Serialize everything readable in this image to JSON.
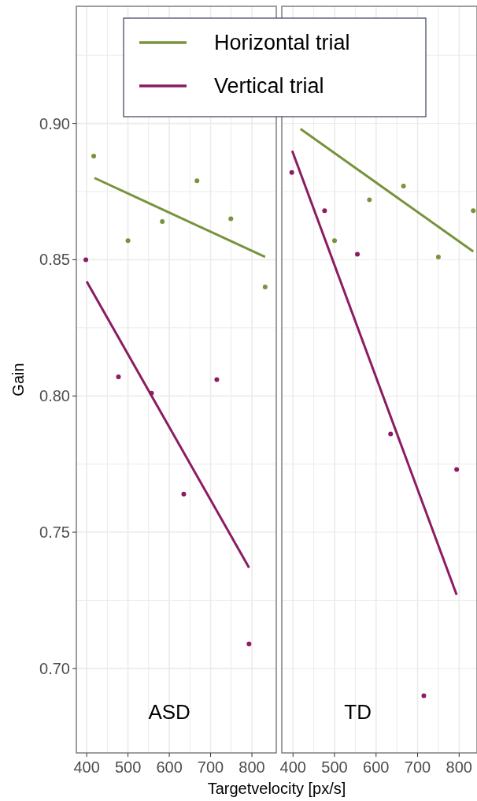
{
  "chart_data": [
    {
      "type": "scatter",
      "ylabel": "Gain",
      "xlabel": "Targetvelocity [px/s]",
      "annotations": [
        "ASD"
      ],
      "legend": "top",
      "grid": true,
      "marker": "circle",
      "xlim": [
        375,
        859
      ],
      "ylim": [
        0.669,
        0.943
      ],
      "xticks": [
        400,
        {
          "value": 450,
          "label": null
        },
        500,
        {
          "value": 550,
          "label": null
        },
        600,
        {
          "value": 650,
          "label": null
        },
        700,
        {
          "value": 750,
          "label": null
        },
        800
      ],
      "yticks": [
        {
          "value": 0.7,
          "label": "0.70"
        },
        {
          "value": 0.725,
          "label": null
        },
        {
          "value": 0.75,
          "label": "0.75"
        },
        {
          "value": 0.775,
          "label": null
        },
        {
          "value": 0.8,
          "label": "0.80"
        },
        {
          "value": 0.825,
          "label": null
        },
        {
          "value": 0.85,
          "label": "0.85"
        },
        {
          "value": 0.875,
          "label": null
        },
        {
          "value": 0.9,
          "label": "0.90"
        },
        {
          "value": 0.925,
          "label": null
        }
      ],
      "series": [
        {
          "color": "#77933c",
          "x": [
            417,
            500,
            583,
            667,
            749,
            832
          ],
          "values": [
            0.888,
            0.857,
            0.864,
            0.879,
            0.865,
            0.84
          ]
        },
        {
          "type": "line",
          "marker": "none",
          "name": "Horizontal trial",
          "color": "#77933c",
          "x": [
            419,
            832
          ],
          "values": [
            0.88,
            0.851
          ]
        },
        {
          "color": "#8b1c62",
          "x": [
            398,
            477,
            557,
            635,
            715,
            793
          ],
          "values": [
            0.85,
            0.807,
            0.801,
            0.764,
            0.806,
            0.709
          ]
        },
        {
          "type": "line",
          "marker": "none",
          "name": "Vertical trial",
          "color": "#8b1c62",
          "x": [
            400,
            793
          ],
          "values": [
            0.842,
            0.737
          ]
        }
      ]
    },
    {
      "type": "scatter",
      "annotations": [
        "TD"
      ],
      "tick_labels": "x",
      "grid": true,
      "marker": "circle",
      "xlim": [
        373,
        843
      ],
      "ylim": [
        0.669,
        0.943
      ],
      "xticks": [
        400,
        {
          "value": 450,
          "label": null
        },
        500,
        {
          "value": 550,
          "label": null
        },
        600,
        {
          "value": 650,
          "label": null
        },
        700,
        {
          "value": 750,
          "label": null
        },
        800
      ],
      "yticks": [
        {
          "value": 0.7,
          "label": null
        },
        {
          "value": 0.725,
          "label": null
        },
        {
          "value": 0.75,
          "label": null
        },
        {
          "value": 0.775,
          "label": null
        },
        {
          "value": 0.8,
          "label": null
        },
        {
          "value": 0.825,
          "label": null
        },
        {
          "value": 0.85,
          "label": null
        },
        {
          "value": 0.875,
          "label": null
        },
        {
          "value": 0.9,
          "label": null
        },
        {
          "value": 0.925,
          "label": null
        }
      ],
      "series": [
        {
          "color": "#77933c",
          "x": [
            500,
            584,
            666,
            750,
            834
          ],
          "values": [
            0.857,
            0.872,
            0.877,
            0.851,
            0.868
          ]
        },
        {
          "type": "line",
          "marker": "none",
          "color": "#77933c",
          "x": [
            418,
            834
          ],
          "values": [
            0.898,
            0.853
          ]
        },
        {
          "color": "#8b1c62",
          "x": [
            397,
            476,
            555,
            635,
            715,
            794
          ],
          "values": [
            0.882,
            0.868,
            0.852,
            0.786,
            0.69,
            0.773
          ]
        },
        {
          "type": "line",
          "marker": "none",
          "color": "#8b1c62",
          "x": [
            398,
            794
          ],
          "values": [
            0.89,
            0.727
          ]
        }
      ]
    }
  ]
}
